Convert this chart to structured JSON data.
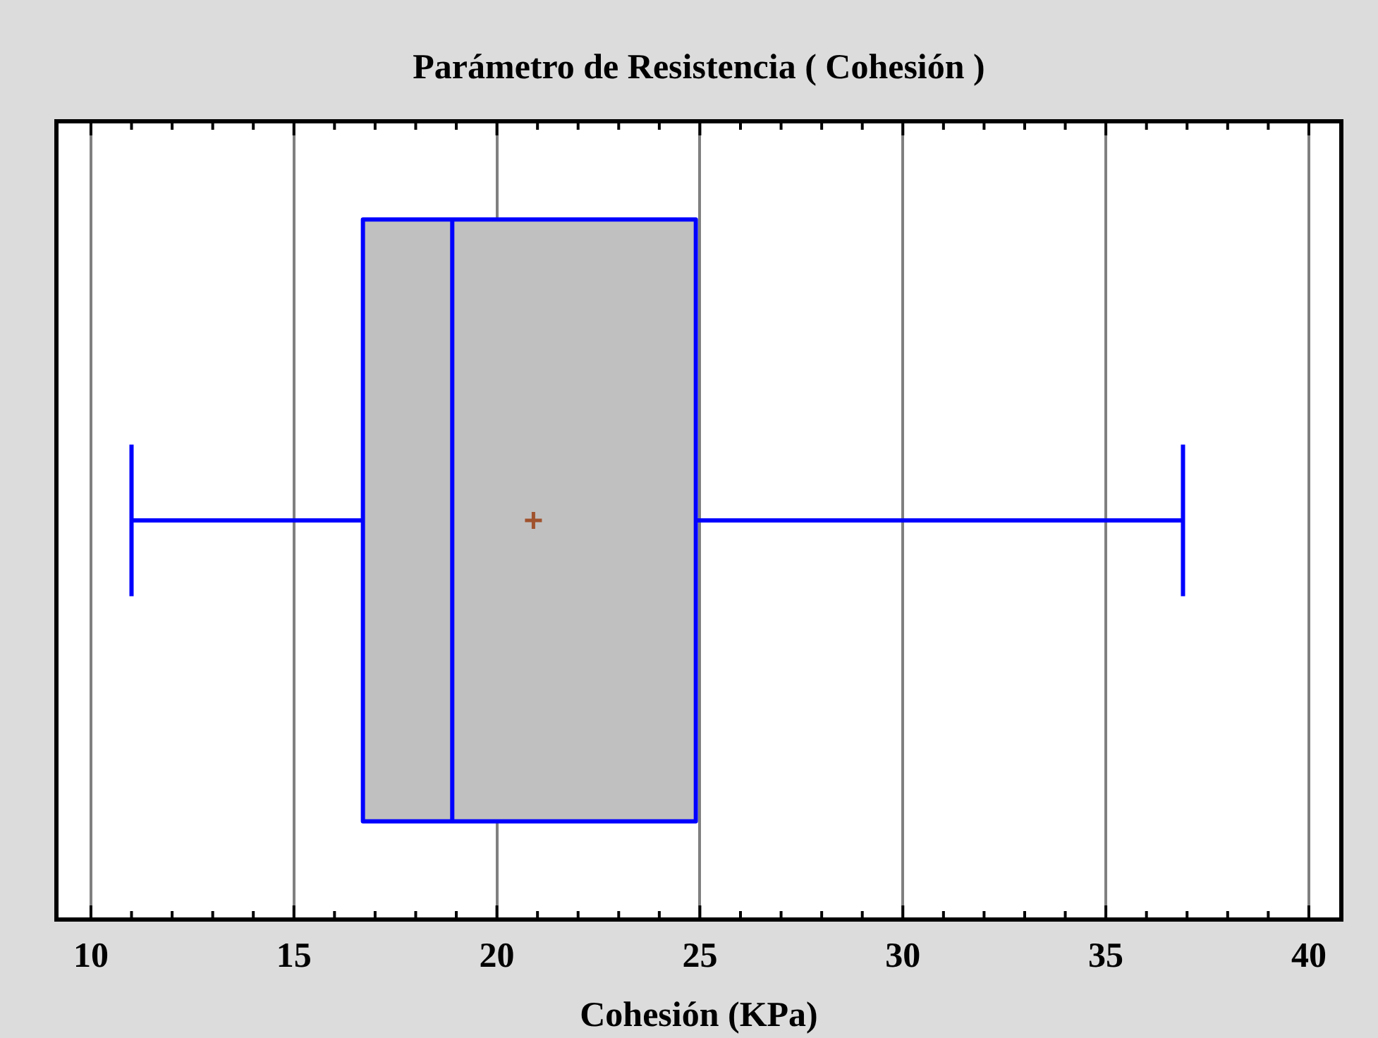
{
  "chart_data": {
    "type": "box",
    "title": "Parámetro de Resistencia ( Cohesión )",
    "xlabel": "Cohesión (KPa)",
    "orientation": "horizontal",
    "categories": [
      null
    ],
    "series": [
      {
        "color": "#c0c0c0",
        "boxes": [
          {
            "low": 11.0,
            "q1": 16.7,
            "median": 18.9,
            "q3": 24.9,
            "high": 36.9,
            "mean": 20.9
          }
        ]
      }
    ],
    "xlim": [
      9.15,
      40.8
    ],
    "xticks": [
      10,
      {
        "value": 11,
        "label": null
      },
      {
        "value": 12,
        "label": null
      },
      {
        "value": 13,
        "label": null
      },
      {
        "value": 14,
        "label": null
      },
      15,
      {
        "value": 16,
        "label": null
      },
      {
        "value": 17,
        "label": null
      },
      {
        "value": 18,
        "label": null
      },
      {
        "value": 19,
        "label": null
      },
      20,
      {
        "value": 21,
        "label": null
      },
      {
        "value": 22,
        "label": null
      },
      {
        "value": 23,
        "label": null
      },
      {
        "value": 24,
        "label": null
      },
      25,
      {
        "value": 26,
        "label": null
      },
      {
        "value": 27,
        "label": null
      },
      {
        "value": 28,
        "label": null
      },
      {
        "value": 29,
        "label": null
      },
      30,
      {
        "value": 31,
        "label": null
      },
      {
        "value": 32,
        "label": null
      },
      {
        "value": 33,
        "label": null
      },
      {
        "value": 34,
        "label": null
      },
      35,
      {
        "value": 36,
        "label": null
      },
      {
        "value": 37,
        "label": null
      },
      {
        "value": 38,
        "label": null
      },
      {
        "value": 39,
        "label": null
      },
      40
    ],
    "grid": "x"
  }
}
